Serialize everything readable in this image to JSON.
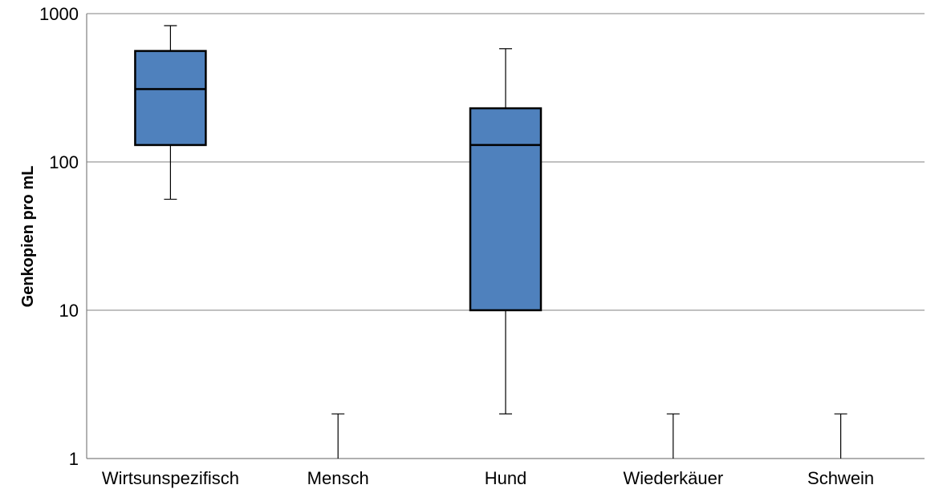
{
  "chart_data": {
    "type": "boxplot",
    "title": "",
    "xlabel": "",
    "ylabel": "Genkopien pro mL",
    "yscale": "log",
    "ylim": [
      1,
      1000
    ],
    "yticks": [
      1,
      10,
      100,
      1000
    ],
    "ytick_labels": [
      "1",
      "10",
      "100",
      "1000"
    ],
    "grid": "horizontal",
    "legend": "none",
    "colors": {
      "box_fill": "#4f81bd",
      "box_stroke": "#000000",
      "grid": "#808080"
    },
    "categories": [
      "Wirtsunspezifisch",
      "Mensch",
      "Hund",
      "Wiederkäuer",
      "Schwein"
    ],
    "boxes": [
      {
        "category": "Wirtsunspezifisch",
        "whisker_low": 56,
        "q1": 130,
        "median": 310,
        "q3": 560,
        "whisker_high": 830
      },
      {
        "category": "Mensch",
        "whisker_low": 1,
        "q1": 1,
        "median": 1,
        "q3": 1,
        "whisker_high": 2
      },
      {
        "category": "Hund",
        "whisker_low": 2,
        "q1": 10,
        "median": 130,
        "q3": 230,
        "whisker_high": 580
      },
      {
        "category": "Wiederkäuer",
        "whisker_low": 1,
        "q1": 1,
        "median": 1,
        "q3": 1,
        "whisker_high": 2
      },
      {
        "category": "Schwein",
        "whisker_low": 1,
        "q1": 1,
        "median": 1,
        "q3": 1,
        "whisker_high": 2
      }
    ]
  }
}
